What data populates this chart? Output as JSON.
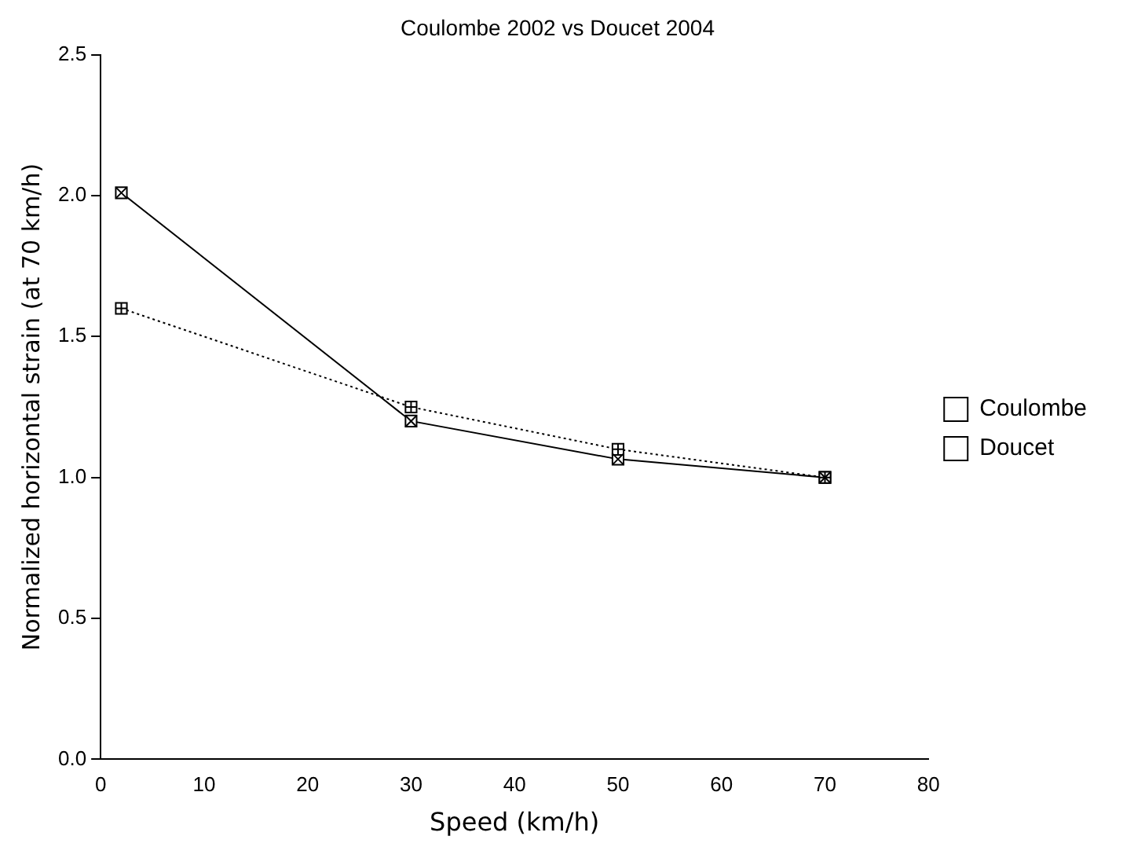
{
  "chart_data": {
    "type": "line",
    "title": "Coulombe 2002 vs Doucet 2004",
    "xlabel": "Speed (km/h)",
    "ylabel": "Normalized horizontal strain (at 70 km/h)",
    "x": [
      2,
      30,
      50,
      70
    ],
    "series": [
      {
        "name": "Coulombe",
        "color": "#000000",
        "values": [
          1.6,
          1.25,
          1.1,
          1.0
        ],
        "line_style": "dotted"
      },
      {
        "name": "Doucet",
        "color": "#000000",
        "values": [
          2.01,
          1.2,
          1.065,
          1.0
        ],
        "line_style": "solid"
      }
    ],
    "xlim": [
      0,
      80
    ],
    "xticks": [
      0,
      10,
      20,
      30,
      40,
      50,
      60,
      70,
      80
    ],
    "ylim": [
      0,
      2.5
    ],
    "yticks": [
      {
        "value": 0,
        "label": "0.0"
      },
      0.5,
      {
        "value": 1,
        "label": "1.0"
      },
      1.5,
      {
        "value": 2,
        "label": "2.0"
      },
      2.5
    ],
    "grid": false,
    "legend": "right",
    "marker": "square"
  }
}
